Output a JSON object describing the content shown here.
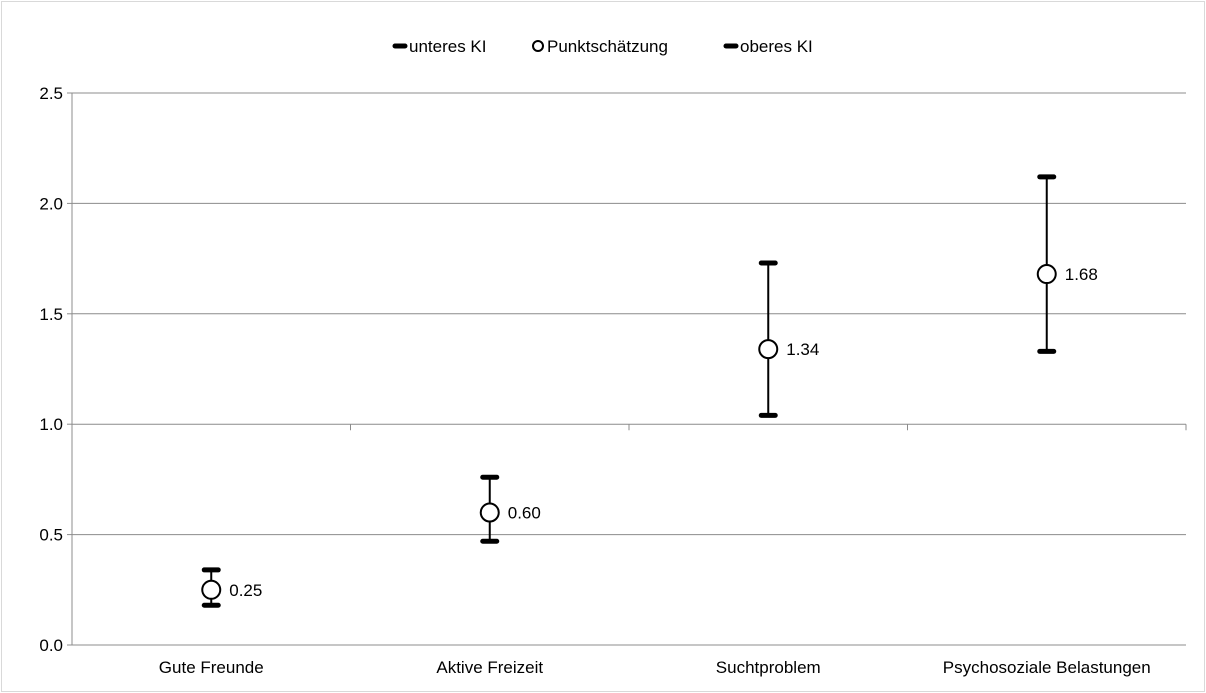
{
  "chart_data": {
    "type": "scatter",
    "title": "",
    "xlabel": "",
    "ylabel": "",
    "ylim": [
      0,
      2.5
    ],
    "y_ticks": [
      "0.0",
      "0.5",
      "1.0",
      "1.5",
      "2.0",
      "2.5"
    ],
    "grid": true,
    "legend_position": "top",
    "legend": [
      {
        "name": "unteres KI",
        "marker": "dash"
      },
      {
        "name": "Punktschätzung",
        "marker": "circle"
      },
      {
        "name": "oberes KI",
        "marker": "dash"
      }
    ],
    "categories": [
      "Gute Freunde",
      "Aktive Freizeit",
      "Suchtproblem",
      "Psychosoziale Belastungen"
    ],
    "series": [
      {
        "name": "unteres KI",
        "values": [
          0.18,
          0.47,
          1.04,
          1.33
        ]
      },
      {
        "name": "Punktschätzung",
        "values": [
          0.25,
          0.6,
          1.34,
          1.68
        ]
      },
      {
        "name": "oberes KI",
        "values": [
          0.34,
          0.76,
          1.73,
          2.12
        ]
      }
    ],
    "data_labels": [
      "0.25",
      "0.60",
      "1.34",
      "1.68"
    ]
  }
}
